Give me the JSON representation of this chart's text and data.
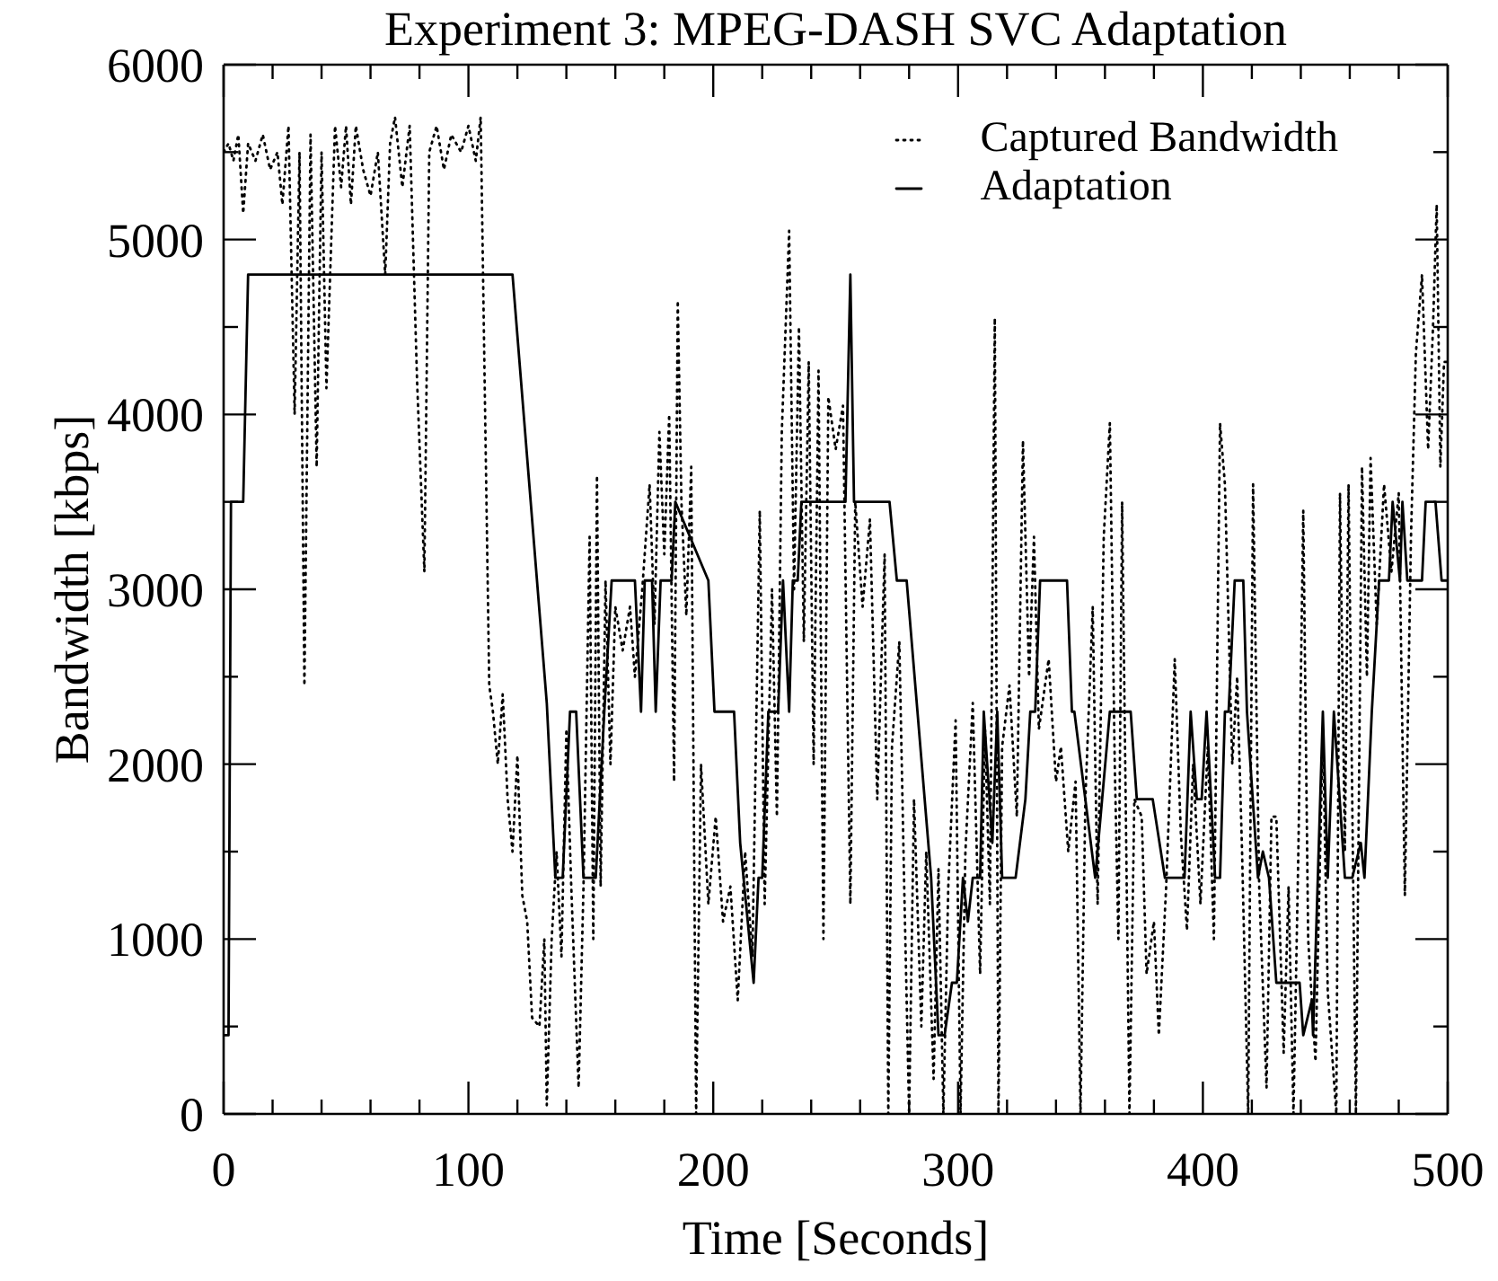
{
  "chart_data": {
    "type": "line",
    "title": "Experiment 3: MPEG-DASH SVC Adaptation",
    "xlabel": "Time [Seconds]",
    "ylabel": "Bandwidth [kbps]",
    "xlim": [
      0,
      500
    ],
    "ylim": [
      0,
      6000
    ],
    "xticks": [
      0,
      {
        "value": 20,
        "label": null
      },
      {
        "value": 40,
        "label": null
      },
      {
        "value": 60,
        "label": null
      },
      {
        "value": 80,
        "label": null
      },
      100,
      {
        "value": 120,
        "label": null
      },
      {
        "value": 140,
        "label": null
      },
      {
        "value": 160,
        "label": null
      },
      {
        "value": 180,
        "label": null
      },
      200,
      {
        "value": 220,
        "label": null
      },
      {
        "value": 240,
        "label": null
      },
      {
        "value": 260,
        "label": null
      },
      {
        "value": 280,
        "label": null
      },
      300,
      {
        "value": 320,
        "label": null
      },
      {
        "value": 340,
        "label": null
      },
      {
        "value": 360,
        "label": null
      },
      {
        "value": 380,
        "label": null
      },
      400,
      {
        "value": 420,
        "label": null
      },
      {
        "value": 440,
        "label": null
      },
      {
        "value": 460,
        "label": null
      },
      {
        "value": 480,
        "label": null
      },
      500
    ],
    "yticks": [
      0,
      {
        "value": 500,
        "label": null
      },
      1000,
      {
        "value": 1500,
        "label": null
      },
      2000,
      {
        "value": 2500,
        "label": null
      },
      3000,
      {
        "value": 3500,
        "label": null
      },
      4000,
      {
        "value": 4500,
        "label": null
      },
      5000,
      {
        "value": 5500,
        "label": null
      },
      6000
    ],
    "grid": false,
    "legend": "top right",
    "marker": "none",
    "series": [
      {
        "name": "Captured Bandwidth",
        "color": "#000000",
        "line_style": "dotted",
        "x": [
          0,
          2,
          4,
          6,
          8,
          10,
          13,
          16,
          19,
          22,
          24,
          26.5,
          29,
          31,
          33,
          35.5,
          38,
          40,
          42,
          45.5,
          48,
          50,
          52,
          54,
          57,
          60,
          63,
          66,
          68,
          70,
          73,
          76,
          79,
          82,
          84,
          87,
          90,
          93,
          97,
          100,
          103,
          105,
          106.5,
          108.5,
          110,
          112,
          114,
          116,
          118,
          120,
          122,
          124,
          126,
          129,
          131,
          132,
          134,
          136,
          138,
          140,
          142,
          145,
          147,
          149.5,
          151,
          152.5,
          154,
          156,
          158,
          160,
          163,
          166,
          168,
          171,
          174,
          176,
          178,
          180,
          182,
          184,
          185.5,
          187,
          189,
          191,
          193,
          195,
          198,
          201,
          204,
          207,
          210,
          213,
          216,
          219,
          221,
          224,
          226,
          228,
          231,
          233,
          235,
          237,
          239,
          241,
          243,
          245,
          247,
          250,
          253,
          256,
          258,
          261,
          264,
          267,
          270,
          271.5,
          273,
          276,
          278,
          280,
          282,
          285,
          287,
          290,
          292,
          294,
          296,
          299,
          301,
          303,
          306,
          309,
          311,
          313,
          315,
          316.5,
          318,
          321,
          324,
          326.5,
          329,
          331,
          333,
          337,
          340,
          342,
          345,
          348,
          350,
          352,
          355,
          357,
          359.5,
          362,
          364,
          365.5,
          367,
          370,
          372,
          375,
          377,
          380,
          382,
          385,
          388.5,
          391,
          393.5,
          396,
          399,
          402,
          404.5,
          407,
          409,
          412,
          414,
          416,
          418.5,
          420.5,
          423,
          426,
          428,
          430,
          433,
          435,
          437,
          439,
          441,
          443,
          446,
          449,
          451,
          454.5,
          456,
          458,
          459.5,
          462.5,
          465,
          467,
          468.5,
          471,
          474,
          477,
          480,
          482.5,
          485,
          487,
          489.5,
          492,
          494,
          495.5,
          497,
          498.5,
          500
        ],
        "values": [
          5500,
          5550,
          5450,
          5600,
          5150,
          5550,
          5450,
          5600,
          5400,
          5500,
          5200,
          5650,
          4000,
          5500,
          2450,
          5600,
          3700,
          5500,
          4150,
          5650,
          5300,
          5650,
          5200,
          5650,
          5400,
          5250,
          5500,
          4800,
          5550,
          5700,
          5300,
          5650,
          4200,
          3100,
          5500,
          5650,
          5400,
          5600,
          5500,
          5650,
          5450,
          5700,
          4300,
          2450,
          2300,
          2000,
          2400,
          1800,
          1500,
          2050,
          1250,
          1100,
          550,
          500,
          1000,
          50,
          1000,
          1500,
          900,
          2200,
          1300,
          150,
          1300,
          3300,
          1000,
          3650,
          1300,
          3050,
          2000,
          2900,
          2650,
          2900,
          2500,
          3000,
          3600,
          2800,
          3900,
          3200,
          4000,
          1900,
          4650,
          3500,
          2850,
          3700,
          0,
          2000,
          1200,
          1700,
          1100,
          1300,
          650,
          1500,
          900,
          3450,
          1200,
          3000,
          1700,
          3900,
          5050,
          3000,
          4500,
          2700,
          4300,
          2000,
          4250,
          1000,
          4100,
          3800,
          4050,
          1200,
          3500,
          2900,
          3400,
          1800,
          3200,
          0,
          2100,
          2700,
          1300,
          0,
          1800,
          500,
          1500,
          200,
          1400,
          0,
          1300,
          2250,
          0,
          1500,
          2350,
          800,
          2200,
          1200,
          4550,
          0,
          2100,
          2450,
          1700,
          3850,
          2500,
          3300,
          2200,
          2600,
          1900,
          2100,
          1500,
          1900,
          0,
          1800,
          2900,
          1200,
          3300,
          3950,
          2000,
          1000,
          3500,
          0,
          1800,
          1700,
          800,
          1100,
          450,
          1300,
          2600,
          1600,
          1050,
          2000,
          1200,
          2100,
          1000,
          3950,
          3600,
          2000,
          2500,
          1500,
          0,
          3600,
          1300,
          150,
          1700,
          1700,
          350,
          1300,
          0,
          1500,
          3450,
          1000,
          300,
          2200,
          700,
          0,
          3550,
          1500,
          3600,
          0,
          3700,
          2500,
          3750,
          2800,
          3600,
          3100,
          3550,
          1250,
          3300,
          4350,
          4800,
          3800,
          4500,
          5200,
          3700,
          4300,
          4300
        ]
      },
      {
        "name": "Adaptation",
        "color": "#000000",
        "line_style": "solid",
        "x": [
          0,
          2,
          3,
          8,
          10,
          118,
          132,
          135.5,
          138.5,
          141.5,
          144,
          147,
          152,
          155.5,
          158.5,
          168,
          170.5,
          172,
          175,
          176.5,
          178.5,
          183,
          184.5,
          198,
          200.5,
          208.5,
          211,
          216.5,
          218.5,
          220,
          222.5,
          226.5,
          228.5,
          231,
          232.5,
          234.5,
          236,
          254,
          256,
          257.5,
          272,
          275,
          279,
          289,
          292,
          294.5,
          297.5,
          299.5,
          302,
          304,
          306,
          309,
          310.5,
          314,
          316,
          318,
          323.5,
          327.5,
          329.5,
          331.5,
          333.5,
          344.5,
          346.5,
          347.5,
          356,
          362,
          370.5,
          373,
          379.5,
          384.5,
          392.5,
          395,
          397.5,
          399.5,
          401.5,
          405,
          407,
          409,
          410.5,
          413,
          416.5,
          418,
          422.5,
          424.5,
          427,
          430,
          439.5,
          441,
          444.5,
          445,
          449,
          451,
          453.5,
          458,
          461,
          464.5,
          466,
          469,
          472,
          476,
          477.5,
          480.5,
          481.5,
          483.5,
          489.5,
          491,
          495,
          497.5,
          500
        ],
        "values": [
          450,
          450,
          3500,
          3500,
          4800,
          4800,
          2350,
          1350,
          1350,
          2300,
          2300,
          1350,
          1350,
          2300,
          3050,
          3050,
          2300,
          3050,
          3050,
          2300,
          3050,
          3050,
          3500,
          3050,
          2300,
          2300,
          1550,
          750,
          1350,
          1350,
          2300,
          2300,
          3050,
          2300,
          3050,
          3050,
          3500,
          3500,
          4800,
          3500,
          3500,
          3050,
          3050,
          1350,
          450,
          450,
          750,
          750,
          1350,
          1100,
          1350,
          1350,
          2300,
          1550,
          2300,
          1350,
          1350,
          1800,
          2300,
          2300,
          3050,
          3050,
          2300,
          2300,
          1350,
          2300,
          2300,
          1800,
          1800,
          1350,
          1350,
          2300,
          1800,
          1800,
          2300,
          1350,
          1350,
          2300,
          2300,
          3050,
          3050,
          2300,
          1350,
          1500,
          1350,
          750,
          750,
          450,
          650,
          450,
          2300,
          1350,
          2300,
          1350,
          1350,
          1550,
          1350,
          2300,
          3050,
          3050,
          3500,
          3050,
          3500,
          3050,
          3050,
          3500,
          3500,
          3050,
          3050
        ]
      }
    ]
  }
}
